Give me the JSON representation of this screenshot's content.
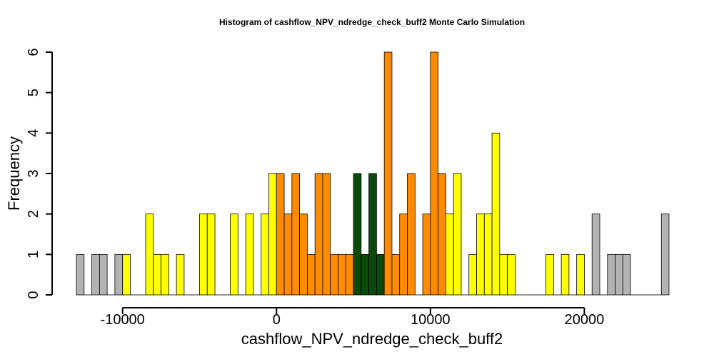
{
  "chart_data": {
    "type": "bar",
    "title": "Histogram of  cashflow_NPV_ndredge_check_buff2  Monte Carlo Simulation",
    "xlabel": "cashflow_NPV_ndredge_check_buff2",
    "ylabel": "Frequency",
    "xlim": [
      -13000,
      25500
    ],
    "ylim": [
      0,
      6
    ],
    "bin_width": 500,
    "xticks": [
      -10000,
      0,
      10000,
      20000
    ],
    "xtick_labels": [
      "-10000",
      "0",
      "10000",
      "20000"
    ],
    "yticks": [
      0,
      1,
      2,
      3,
      4,
      5,
      6
    ],
    "ytick_labels": [
      "0",
      "1",
      "2",
      "3",
      "4",
      "5",
      "6"
    ],
    "colors": {
      "tail": "#b3b3b3",
      "outer": "#ffff00",
      "inner": "#ff8c00",
      "center": "#0a4a0a"
    },
    "bins": [
      {
        "x0": -13000,
        "x1": -12500,
        "count": 1,
        "group": "tail"
      },
      {
        "x0": -12500,
        "x1": -12000,
        "count": 0,
        "group": "tail"
      },
      {
        "x0": -12000,
        "x1": -11500,
        "count": 1,
        "group": "tail"
      },
      {
        "x0": -11500,
        "x1": -11000,
        "count": 1,
        "group": "tail"
      },
      {
        "x0": -11000,
        "x1": -10500,
        "count": 0,
        "group": "tail"
      },
      {
        "x0": -10500,
        "x1": -10000,
        "count": 1,
        "group": "tail"
      },
      {
        "x0": -10000,
        "x1": -9500,
        "count": 1,
        "group": "outer"
      },
      {
        "x0": -9500,
        "x1": -9000,
        "count": 0,
        "group": "outer"
      },
      {
        "x0": -9000,
        "x1": -8500,
        "count": 0,
        "group": "outer"
      },
      {
        "x0": -8500,
        "x1": -8000,
        "count": 2,
        "group": "outer"
      },
      {
        "x0": -8000,
        "x1": -7500,
        "count": 1,
        "group": "outer"
      },
      {
        "x0": -7500,
        "x1": -7000,
        "count": 1,
        "group": "outer"
      },
      {
        "x0": -7000,
        "x1": -6500,
        "count": 0,
        "group": "outer"
      },
      {
        "x0": -6500,
        "x1": -6000,
        "count": 1,
        "group": "outer"
      },
      {
        "x0": -6000,
        "x1": -5500,
        "count": 0,
        "group": "outer"
      },
      {
        "x0": -5500,
        "x1": -5000,
        "count": 0,
        "group": "outer"
      },
      {
        "x0": -5000,
        "x1": -4500,
        "count": 2,
        "group": "outer"
      },
      {
        "x0": -4500,
        "x1": -4000,
        "count": 2,
        "group": "outer"
      },
      {
        "x0": -4000,
        "x1": -3500,
        "count": 0,
        "group": "outer"
      },
      {
        "x0": -3500,
        "x1": -3000,
        "count": 0,
        "group": "outer"
      },
      {
        "x0": -3000,
        "x1": -2500,
        "count": 2,
        "group": "outer"
      },
      {
        "x0": -2500,
        "x1": -2000,
        "count": 0,
        "group": "outer"
      },
      {
        "x0": -2000,
        "x1": -1500,
        "count": 2,
        "group": "outer"
      },
      {
        "x0": -1500,
        "x1": -1000,
        "count": 0,
        "group": "outer"
      },
      {
        "x0": -1000,
        "x1": -500,
        "count": 2,
        "group": "outer"
      },
      {
        "x0": -500,
        "x1": 0,
        "count": 3,
        "group": "outer"
      },
      {
        "x0": 0,
        "x1": 500,
        "count": 3,
        "group": "inner"
      },
      {
        "x0": 500,
        "x1": 1000,
        "count": 2,
        "group": "inner"
      },
      {
        "x0": 1000,
        "x1": 1500,
        "count": 3,
        "group": "inner"
      },
      {
        "x0": 1500,
        "x1": 2000,
        "count": 2,
        "group": "inner"
      },
      {
        "x0": 2000,
        "x1": 2500,
        "count": 1,
        "group": "inner"
      },
      {
        "x0": 2500,
        "x1": 3000,
        "count": 3,
        "group": "inner"
      },
      {
        "x0": 3000,
        "x1": 3500,
        "count": 3,
        "group": "inner"
      },
      {
        "x0": 3500,
        "x1": 4000,
        "count": 1,
        "group": "inner"
      },
      {
        "x0": 4000,
        "x1": 4500,
        "count": 1,
        "group": "inner"
      },
      {
        "x0": 4500,
        "x1": 5000,
        "count": 1,
        "group": "inner"
      },
      {
        "x0": 5000,
        "x1": 5500,
        "count": 3,
        "group": "center"
      },
      {
        "x0": 5500,
        "x1": 6000,
        "count": 1,
        "group": "center"
      },
      {
        "x0": 6000,
        "x1": 6500,
        "count": 3,
        "group": "center"
      },
      {
        "x0": 6500,
        "x1": 7000,
        "count": 1,
        "group": "center"
      },
      {
        "x0": 7000,
        "x1": 7500,
        "count": 6,
        "group": "inner"
      },
      {
        "x0": 7500,
        "x1": 8000,
        "count": 1,
        "group": "inner"
      },
      {
        "x0": 8000,
        "x1": 8500,
        "count": 2,
        "group": "inner"
      },
      {
        "x0": 8500,
        "x1": 9000,
        "count": 3,
        "group": "inner"
      },
      {
        "x0": 9000,
        "x1": 9500,
        "count": 0,
        "group": "inner"
      },
      {
        "x0": 9500,
        "x1": 10000,
        "count": 2,
        "group": "inner"
      },
      {
        "x0": 10000,
        "x1": 10500,
        "count": 6,
        "group": "inner"
      },
      {
        "x0": 10500,
        "x1": 11000,
        "count": 3,
        "group": "inner"
      },
      {
        "x0": 11000,
        "x1": 11500,
        "count": 2,
        "group": "outer"
      },
      {
        "x0": 11500,
        "x1": 12000,
        "count": 3,
        "group": "outer"
      },
      {
        "x0": 12000,
        "x1": 12500,
        "count": 0,
        "group": "outer"
      },
      {
        "x0": 12500,
        "x1": 13000,
        "count": 1,
        "group": "outer"
      },
      {
        "x0": 13000,
        "x1": 13500,
        "count": 2,
        "group": "outer"
      },
      {
        "x0": 13500,
        "x1": 14000,
        "count": 2,
        "group": "outer"
      },
      {
        "x0": 14000,
        "x1": 14500,
        "count": 4,
        "group": "outer"
      },
      {
        "x0": 14500,
        "x1": 15000,
        "count": 1,
        "group": "outer"
      },
      {
        "x0": 15000,
        "x1": 15500,
        "count": 1,
        "group": "outer"
      },
      {
        "x0": 15500,
        "x1": 16000,
        "count": 0,
        "group": "outer"
      },
      {
        "x0": 16000,
        "x1": 16500,
        "count": 0,
        "group": "outer"
      },
      {
        "x0": 16500,
        "x1": 17000,
        "count": 0,
        "group": "outer"
      },
      {
        "x0": 17000,
        "x1": 17500,
        "count": 0,
        "group": "outer"
      },
      {
        "x0": 17500,
        "x1": 18000,
        "count": 1,
        "group": "outer"
      },
      {
        "x0": 18000,
        "x1": 18500,
        "count": 0,
        "group": "outer"
      },
      {
        "x0": 18500,
        "x1": 19000,
        "count": 1,
        "group": "outer"
      },
      {
        "x0": 19000,
        "x1": 19500,
        "count": 0,
        "group": "outer"
      },
      {
        "x0": 19500,
        "x1": 20000,
        "count": 1,
        "group": "outer"
      },
      {
        "x0": 20000,
        "x1": 20500,
        "count": 0,
        "group": "tail"
      },
      {
        "x0": 20500,
        "x1": 21000,
        "count": 2,
        "group": "tail"
      },
      {
        "x0": 21000,
        "x1": 21500,
        "count": 0,
        "group": "tail"
      },
      {
        "x0": 21500,
        "x1": 22000,
        "count": 1,
        "group": "tail"
      },
      {
        "x0": 22000,
        "x1": 22500,
        "count": 1,
        "group": "tail"
      },
      {
        "x0": 22500,
        "x1": 23000,
        "count": 1,
        "group": "tail"
      },
      {
        "x0": 23000,
        "x1": 23500,
        "count": 0,
        "group": "tail"
      },
      {
        "x0": 23500,
        "x1": 24000,
        "count": 0,
        "group": "tail"
      },
      {
        "x0": 24000,
        "x1": 24500,
        "count": 0,
        "group": "tail"
      },
      {
        "x0": 24500,
        "x1": 25000,
        "count": 0,
        "group": "tail"
      },
      {
        "x0": 25000,
        "x1": 25500,
        "count": 2,
        "group": "tail"
      }
    ]
  }
}
